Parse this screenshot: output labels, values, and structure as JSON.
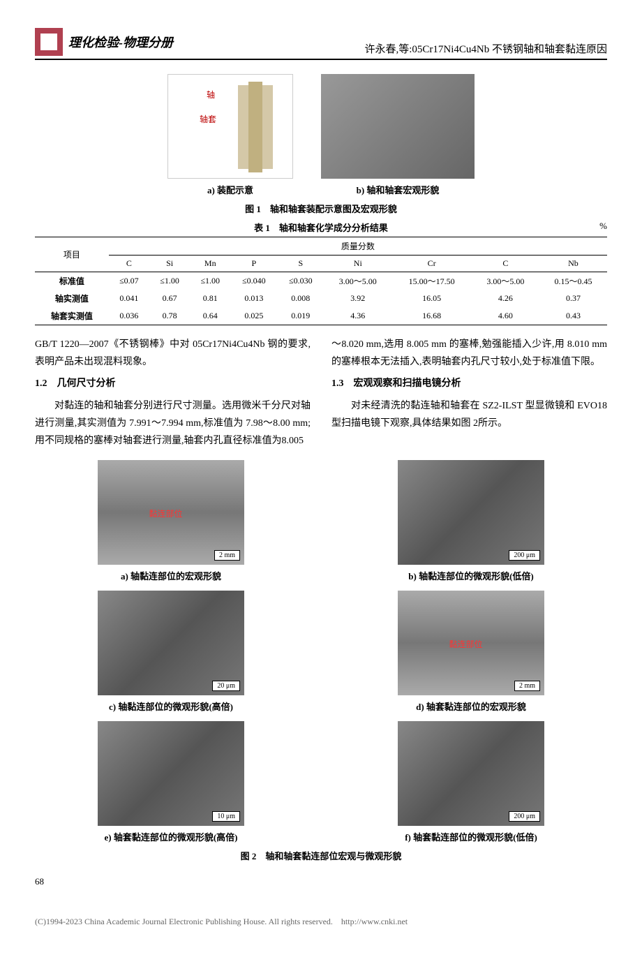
{
  "header": {
    "journal": "理化检验-物理分册",
    "title": "许永春,等:05Cr17Ni4Cu4Nb 不锈钢轴和轴套黏连原因"
  },
  "fig1": {
    "label_shaft": "轴",
    "label_sleeve": "轴套",
    "sub_a": "a) 装配示意",
    "sub_b": "b) 轴和轴套宏观形貌",
    "caption": "图 1　轴和轴套装配示意图及宏观形貌"
  },
  "table1": {
    "caption": "表 1　轴和轴套化学成分分析结果",
    "unit": "%",
    "header_group": "质量分数",
    "col_item": "项目",
    "cols": [
      "C",
      "Si",
      "Mn",
      "P",
      "S",
      "Ni",
      "Cr",
      "C",
      "Nb"
    ],
    "rows": [
      {
        "label": "标准值",
        "vals": [
          "≤0.07",
          "≤1.00",
          "≤1.00",
          "≤0.040",
          "≤0.030",
          "3.00～5.00",
          "15.00～17.50",
          "3.00～5.00",
          "0.15～0.45"
        ]
      },
      {
        "label": "轴实测值",
        "vals": [
          "0.041",
          "0.67",
          "0.81",
          "0.013",
          "0.008",
          "3.92",
          "16.05",
          "4.26",
          "0.37"
        ]
      },
      {
        "label": "轴套实测值",
        "vals": [
          "0.036",
          "0.78",
          "0.64",
          "0.025",
          "0.019",
          "4.36",
          "16.68",
          "4.60",
          "0.43"
        ]
      }
    ]
  },
  "text": {
    "left1": "GB/T 1220—2007《不锈钢棒》中对 05Cr17Ni4Cu4Nb 钢的要求,表明产品未出现混料现象。",
    "sec12": "1.2　几何尺寸分析",
    "left2": "对黏连的轴和轴套分别进行尺寸测量。选用微米千分尺对轴进行测量,其实测值为 7.991～7.994 mm,标准值为 7.98～8.00 mm;用不同规格的塞棒对轴套进行测量,轴套内孔直径标准值为8.005",
    "right1": "～8.020 mm,选用 8.005 mm 的塞棒,勉强能插入少许,用 8.010 mm 的塞棒根本无法插入,表明轴套内孔尺寸较小,处于标准值下限。",
    "sec13": "1.3　宏观观察和扫描电镜分析",
    "right2": "对未经清洗的黏连轴和轴套在 SZ2-ILST 型显微镜和 EVO18 型扫描电镜下观察,具体结果如图 2所示。"
  },
  "fig2": {
    "items": [
      {
        "cap": "a) 轴黏连部位的宏观形貌",
        "scale": "2 mm",
        "label": "黏连部位",
        "bg": "gray-metal"
      },
      {
        "cap": "b) 轴黏连部位的微观形貌(低倍)",
        "scale": "200 μm",
        "bg": "gray-sem"
      },
      {
        "cap": "c) 轴黏连部位的微观形貌(高倍)",
        "scale": "20 μm",
        "bg": "gray-sem"
      },
      {
        "cap": "d) 轴套黏连部位的宏观形貌",
        "scale": "2 mm",
        "label": "黏连部位",
        "bg": "gray-metal"
      },
      {
        "cap": "e) 轴套黏连部位的微观形貌(高倍)",
        "scale": "10 μm",
        "bg": "gray-sem"
      },
      {
        "cap": "f) 轴套黏连部位的微观形貌(低倍)",
        "scale": "200 μm",
        "bg": "gray-sem"
      }
    ],
    "caption": "图 2　轴和轴套黏连部位宏观与微观形貌"
  },
  "page_num": "68",
  "footer": "(C)1994-2023 China Academic Journal Electronic Publishing House. All rights reserved.　http://www.cnki.net"
}
